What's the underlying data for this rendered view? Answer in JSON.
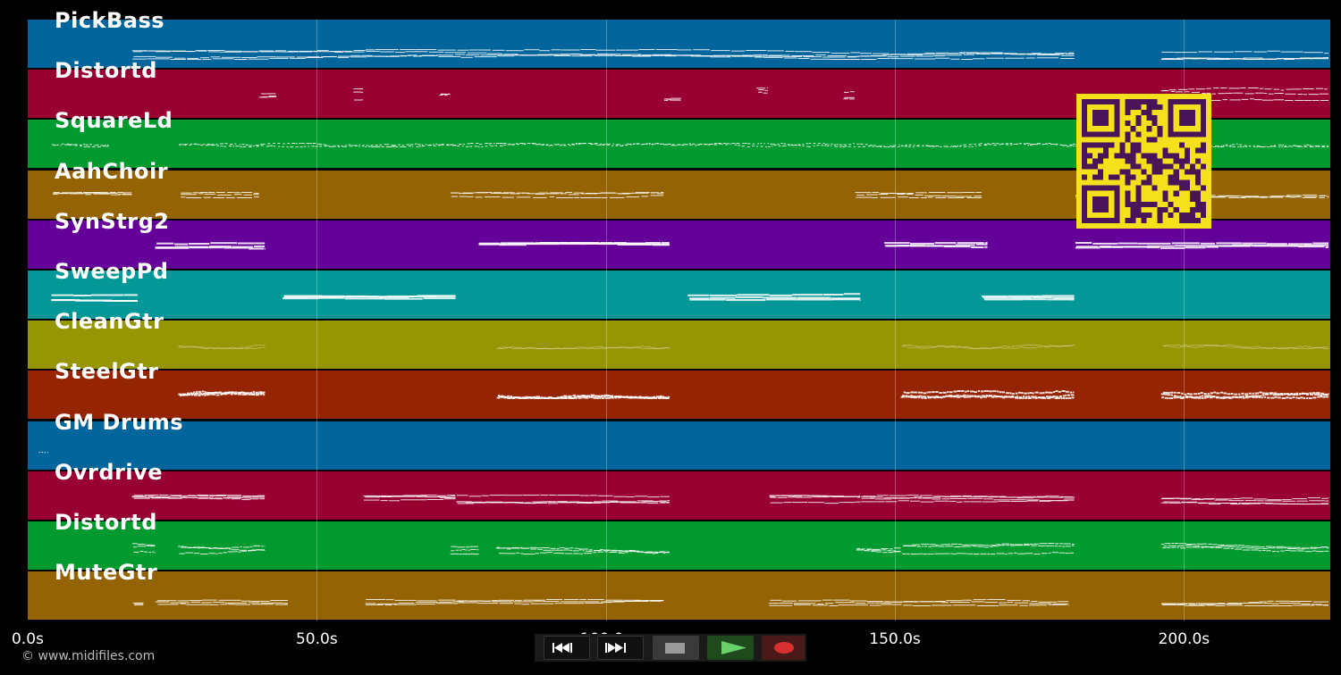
{
  "tracks": [
    {
      "name": "PickBass",
      "color": "#02659b",
      "pattern": "bassline"
    },
    {
      "name": "Distortd",
      "color": "#980032",
      "pattern": "sparse"
    },
    {
      "name": "SquareLd",
      "color": "#019a2e",
      "pattern": "dotted"
    },
    {
      "name": "AahChoir",
      "color": "#946303",
      "pattern": "phrases"
    },
    {
      "name": "SynStrg2",
      "color": "#630199",
      "pattern": "chords"
    },
    {
      "name": "SweepPd",
      "color": "#039897",
      "pattern": "pads"
    },
    {
      "name": "CleanGtr",
      "color": "#969503",
      "pattern": "faint"
    },
    {
      "name": "SteelGtr",
      "color": "#952502",
      "pattern": "strum"
    },
    {
      "name": "GM Drums",
      "color": "#02659b",
      "pattern": "drums"
    },
    {
      "name": "Ovrdrive",
      "color": "#980032",
      "pattern": "power"
    },
    {
      "name": "Distortd",
      "color": "#019a2e",
      "pattern": "riffs"
    },
    {
      "name": "MuteGtr",
      "color": "#946303",
      "pattern": "muted"
    }
  ],
  "timeline": {
    "ticks": [
      "0.0s",
      "50.0s",
      "100.0s",
      "150.0s",
      "200.0s"
    ],
    "tick_seconds": [
      0,
      50,
      100,
      150,
      200
    ],
    "end_seconds": 225.3
  },
  "copyright": "© www.midifiles.com",
  "qr": {
    "foreground": "#4a1458",
    "background": "#f4e11c"
  },
  "transport": {
    "rewind": "rewind-icon",
    "fast_forward": "fast-forward-icon",
    "stop": "stop-icon",
    "play": "play-icon",
    "record": "record-icon"
  }
}
